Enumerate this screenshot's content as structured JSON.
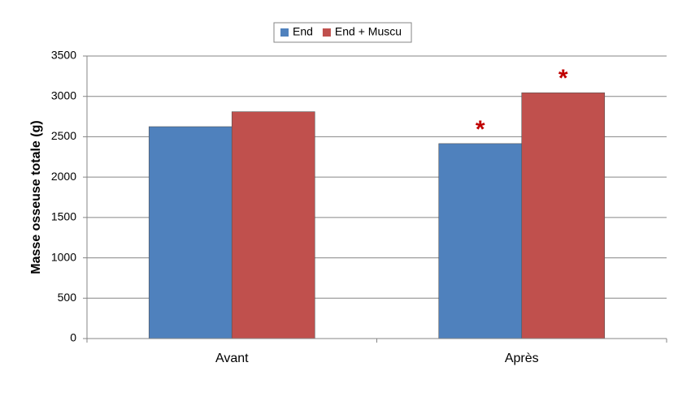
{
  "chart_data": {
    "type": "bar",
    "y_label": "Masse osseuse totale (g)",
    "categories": [
      "Avant",
      "Après"
    ],
    "series": [
      {
        "name": "End",
        "color": "#4f81bd",
        "values": [
          2625,
          2415
        ],
        "annotations": [
          null,
          "*"
        ]
      },
      {
        "name": "End + Muscu",
        "color": "#c0504d",
        "values": [
          2810,
          3045
        ],
        "annotations": [
          null,
          "*"
        ]
      }
    ],
    "ylim": [
      0,
      3500
    ],
    "yticks": [
      0,
      500,
      1000,
      1500,
      2000,
      2500,
      3000,
      3500
    ],
    "grid": true,
    "legend": "top",
    "annotation_color": "#c00000"
  }
}
